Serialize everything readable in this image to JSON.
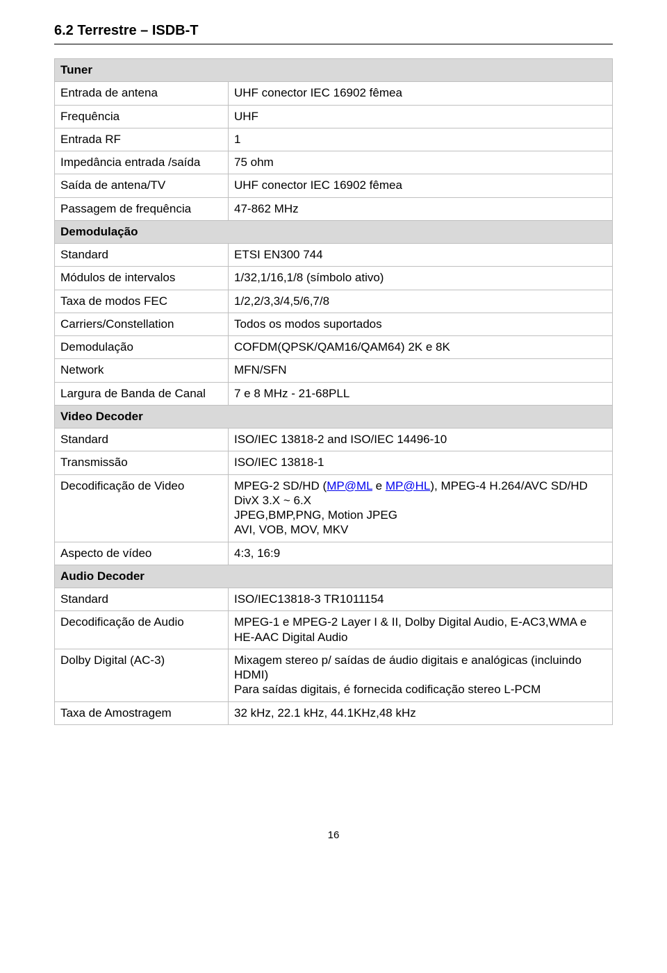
{
  "heading": "6.2    Terrestre – ISDB-T",
  "sections": [
    {
      "group": "Tuner",
      "rows": [
        {
          "label": "Entrada de antena",
          "value": "UHF conector IEC 16902  fêmea"
        },
        {
          "label": "Frequência",
          "value": "UHF"
        },
        {
          "label": "Entrada RF",
          "value": "1"
        },
        {
          "label": "Impedância entrada /saída",
          "value": "75 ohm"
        },
        {
          "label": "Saída de antena/TV",
          "value": "UHF conector IEC 16902 fêmea"
        },
        {
          "label": "Passagem de frequência",
          "value": " 47-862 MHz"
        }
      ]
    },
    {
      "group": "Demodulação",
      "rows": [
        {
          "label": "Standard",
          "value": "ETSI EN300 744"
        },
        {
          "label": "Módulos de intervalos",
          "value": "1/32,1/16,1/8 (símbolo ativo)"
        },
        {
          "label": "Taxa de modos FEC",
          "value": "1/2,2/3,3/4,5/6,7/8"
        },
        {
          "label": "Carriers/Constellation",
          "value": "Todos os modos suportados"
        },
        {
          "label": "Demodulação",
          "value": "COFDM(QPSK/QAM16/QAM64) 2K e 8K"
        },
        {
          "label": "Network",
          "value": "MFN/SFN"
        },
        {
          "label": "Largura de Banda de Canal",
          "value": "7 e 8 MHz - 21-68PLL"
        }
      ]
    },
    {
      "group": "Video Decoder",
      "rows": [
        {
          "label": "Standard",
          "value": "ISO/IEC 13818-2 and ISO/IEC 14496-10"
        },
        {
          "label": "Transmissão",
          "value": "ISO/IEC 13818-1"
        },
        {
          "label": "Decodificação de Video",
          "html": true,
          "pre": "MPEG-2 SD/HD (",
          "link1": "MP@ML",
          "mid1": " e ",
          "link2": "MP@HL",
          "mid2": "),   MPEG-4 H.264/AVC SD/HD\nDivX 3.X ~ 6.X\nJPEG,BMP,PNG, Motion JPEG\nAVI, VOB, MOV, MKV"
        },
        {
          "label": "Aspecto de vídeo",
          "value": "4:3, 16:9"
        }
      ]
    },
    {
      "group": "Audio Decoder",
      "rows": [
        {
          "label": "Standard",
          "value": "ISO/IEC13818-3 TR1011154"
        },
        {
          "label": "Decodificação de Audio",
          "value": "MPEG-1 e MPEG-2 Layer I & II, Dolby Digital Audio, E-AC3,WMA  e HE-AAC Digital Audio"
        },
        {
          "label": "Dolby Digital (AC-3)",
          "value": "Mixagem stereo p/ saídas de áudio digitais e analógicas (incluindo HDMI)\nPara saídas digitais, é fornecida codificação stereo L-PCM"
        },
        {
          "label": "Taxa de Amostragem",
          "value": "32 kHz, 22.1 kHz, 44.1KHz,48 kHz"
        }
      ]
    }
  ],
  "pageNumber": "16",
  "colors": {
    "border": "#bfbfbf",
    "group_bg": "#d9d9d9",
    "link": "#0000ee"
  }
}
